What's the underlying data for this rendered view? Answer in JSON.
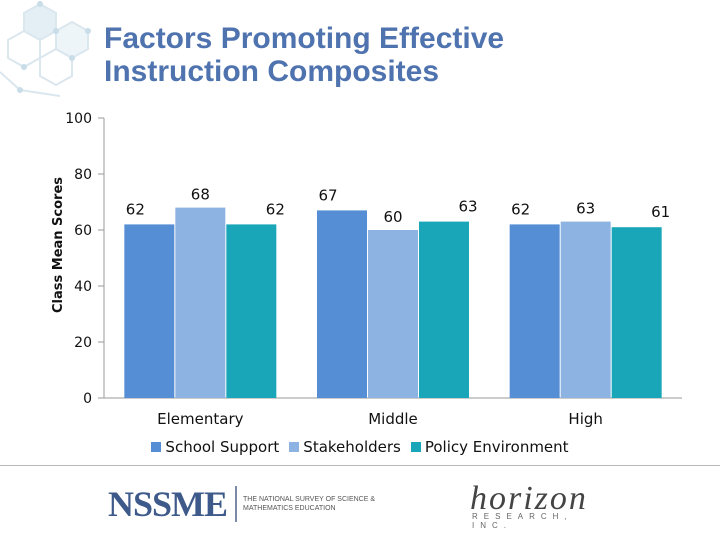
{
  "title_lines": [
    "Factors Promoting Effective",
    "Instruction Composites"
  ],
  "chart_data": {
    "type": "bar",
    "title": "Factors Promoting Effective Instruction Composites",
    "ylabel": "Class Mean Scores",
    "xlabel": "",
    "ylim": [
      0,
      100
    ],
    "yticks": [
      0,
      20,
      40,
      60,
      80,
      100
    ],
    "categories": [
      "Elementary",
      "Middle",
      "High"
    ],
    "series": [
      {
        "name": "School Support",
        "values": [
          62,
          67,
          62
        ],
        "color": "#558ed5"
      },
      {
        "name": "Stakeholders",
        "values": [
          68,
          60,
          63
        ],
        "color": "#8db3e2"
      },
      {
        "name": "Policy Environment",
        "values": [
          62,
          63,
          61
        ],
        "color": "#18a6b8"
      }
    ],
    "legend_position": "bottom",
    "grid": false
  },
  "footer": {
    "nssme_logo": "NSSME",
    "nssme_subtitle": "THE NATIONAL SURVEY OF SCIENCE & MATHEMATICS EDUCATION",
    "horizon_logo": "horizon",
    "horizon_subtitle": "RESEARCH, INC."
  }
}
